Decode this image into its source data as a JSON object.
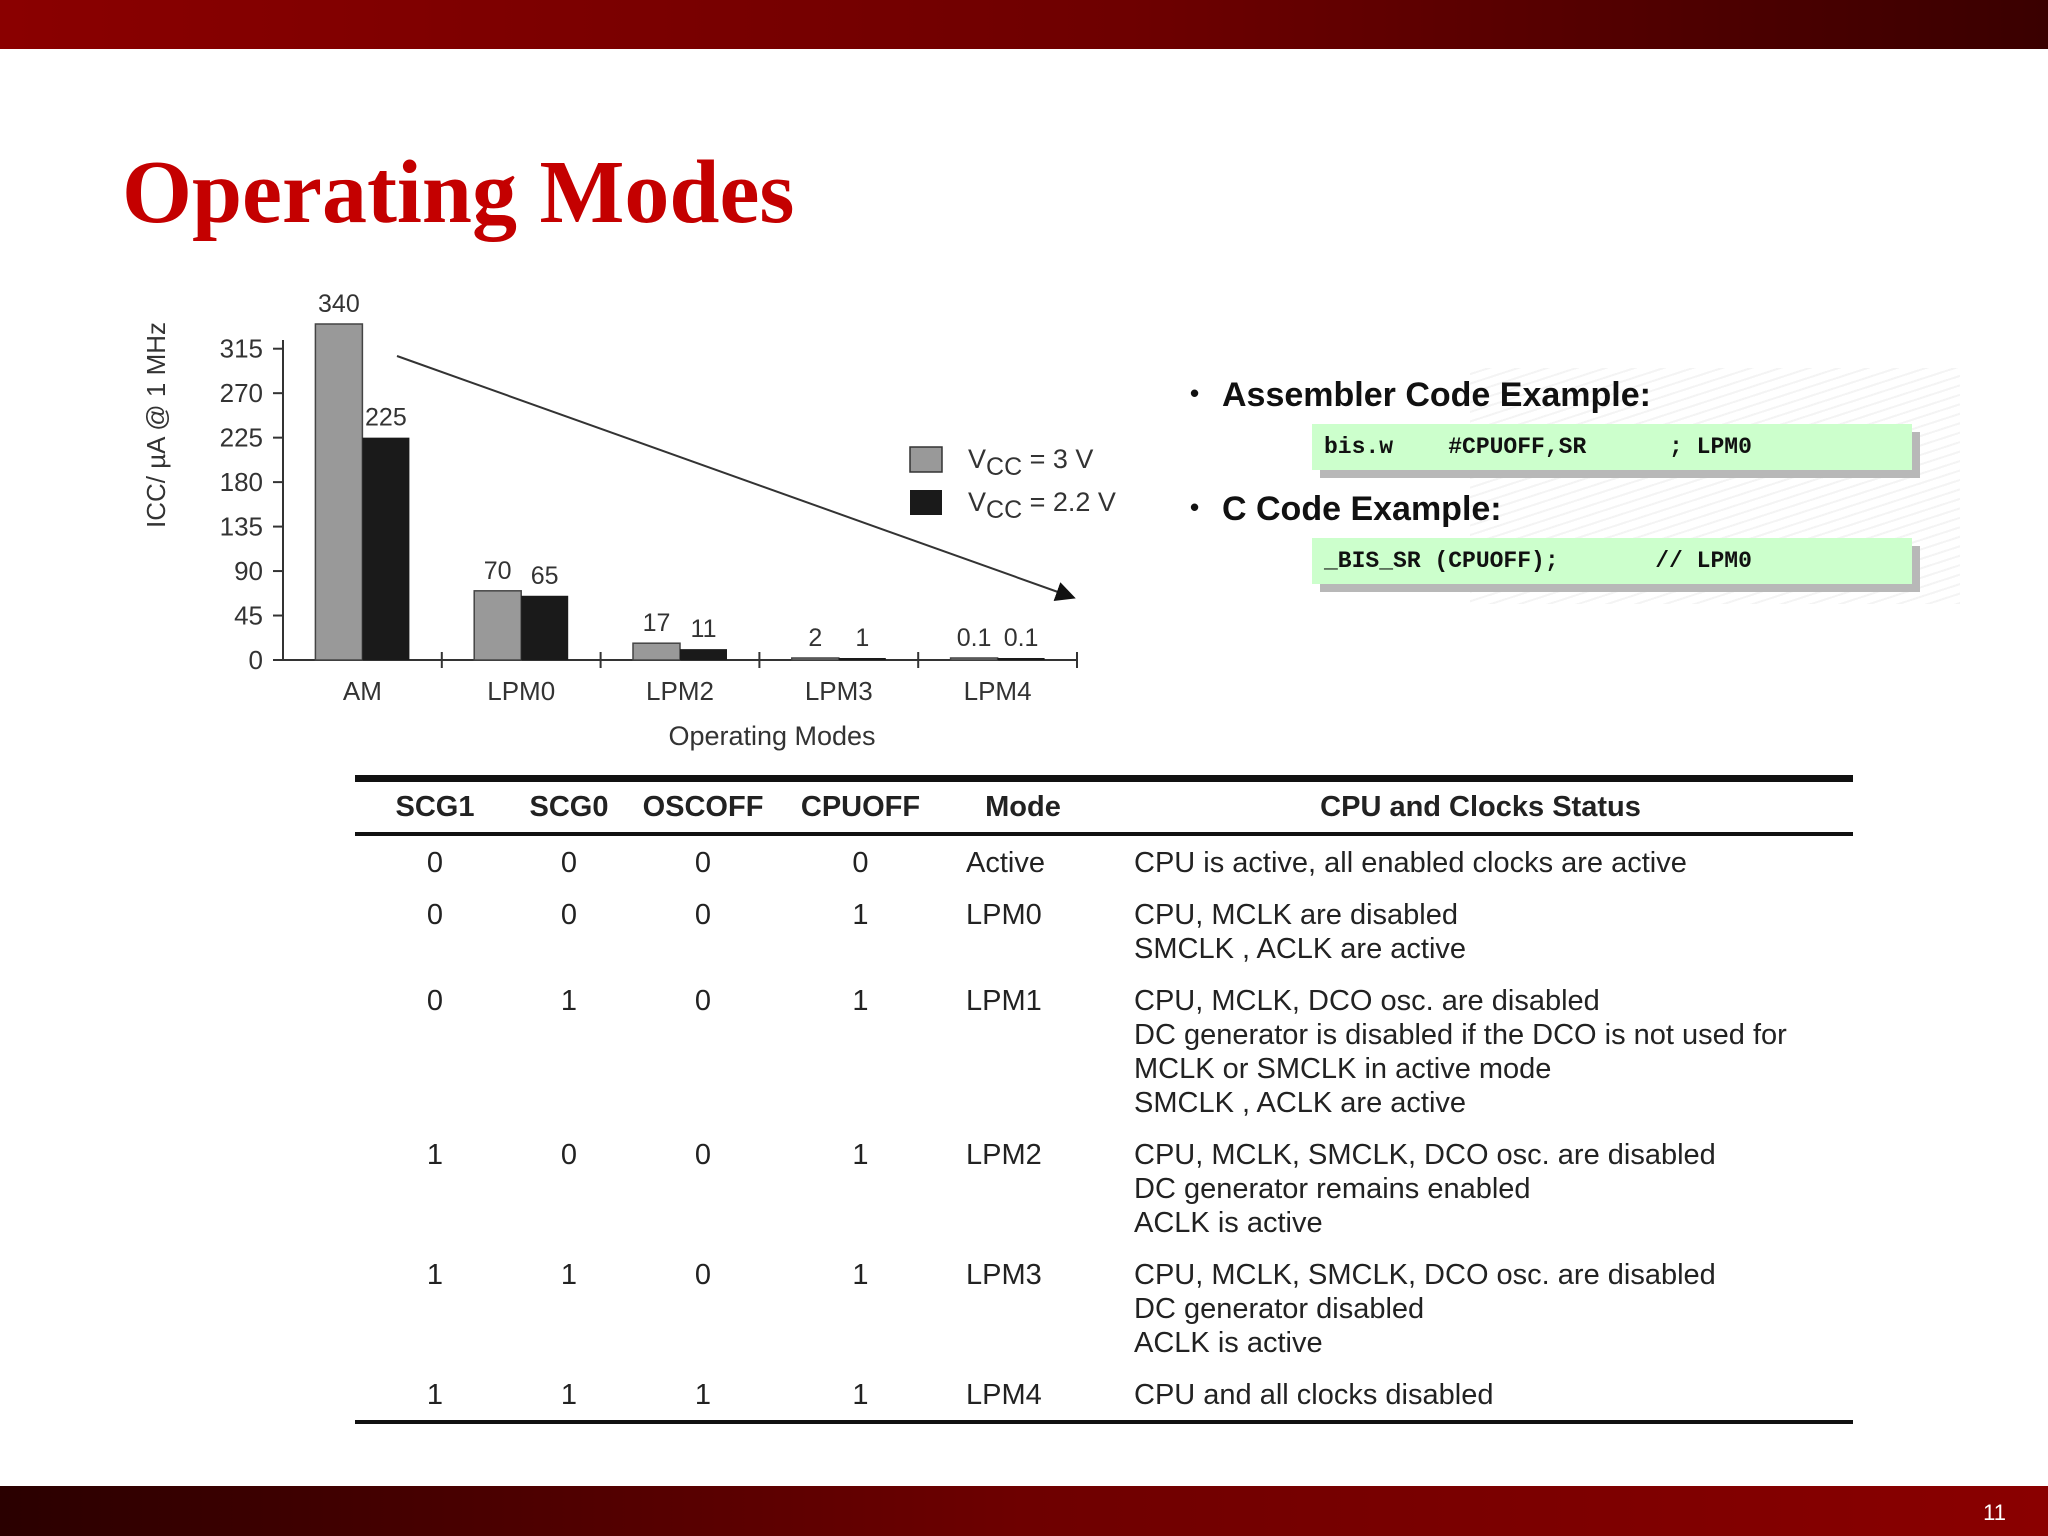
{
  "slide": {
    "title": "Operating Modes",
    "page_number": "11"
  },
  "chart_data": {
    "type": "bar",
    "categories": [
      "AM",
      "LPM0",
      "LPM2",
      "LPM3",
      "LPM4"
    ],
    "series": [
      {
        "name": "VCC = 3 V",
        "values": [
          340,
          70,
          17,
          2,
          0.1
        ],
        "labels": [
          "340",
          "70",
          "17",
          "2",
          "0.1"
        ],
        "color": "#999999"
      },
      {
        "name": "VCC = 2.2 V",
        "values": [
          225,
          65,
          11,
          1,
          0.1
        ],
        "labels": [
          "225",
          "65",
          "11",
          "1",
          "0.1"
        ],
        "color": "#1a1a1a"
      }
    ],
    "yticks": [
      0,
      45,
      90,
      135,
      180,
      225,
      270,
      315
    ],
    "ylim": [
      0,
      340
    ],
    "xlabel": "Operating Modes",
    "ylabel": "ICC/ µA @ 1 MHz",
    "legend": [
      {
        "main": "V",
        "sub": "CC",
        "rest": " = 3 V"
      },
      {
        "main": "V",
        "sub": "CC",
        "rest": " = 2.2 V"
      }
    ],
    "legend_position": "right",
    "trend_arrow": true,
    "grid": false
  },
  "code_examples": [
    {
      "bullet": "Assembler Code Example:",
      "code": "bis.w    #CPUOFF,SR      ; LPM0"
    },
    {
      "bullet": "C Code Example:",
      "code": "_BIS_SR (CPUOFF);       // LPM0"
    }
  ],
  "table": {
    "headers": [
      "SCG1",
      "SCG0",
      "OSCOFF",
      "CPUOFF",
      "Mode",
      "CPU and Clocks Status"
    ],
    "rows": [
      {
        "scg1": "0",
        "scg0": "0",
        "oscoff": "0",
        "cpuoff": "0",
        "mode": "Active",
        "status": "CPU is active, all enabled clocks are active"
      },
      {
        "scg1": "0",
        "scg0": "0",
        "oscoff": "0",
        "cpuoff": "1",
        "mode": "LPM0",
        "status": "CPU, MCLK are disabled\nSMCLK , ACLK are active"
      },
      {
        "scg1": "0",
        "scg0": "1",
        "oscoff": "0",
        "cpuoff": "1",
        "mode": "LPM1",
        "status": "CPU, MCLK, DCO osc. are disabled\nDC generator is disabled if the DCO is not used for\nMCLK or SMCLK in active mode\nSMCLK , ACLK are active"
      },
      {
        "scg1": "1",
        "scg0": "0",
        "oscoff": "0",
        "cpuoff": "1",
        "mode": "LPM2",
        "status": "CPU, MCLK, SMCLK, DCO osc. are disabled\nDC generator remains enabled\nACLK is active"
      },
      {
        "scg1": "1",
        "scg0": "1",
        "oscoff": "0",
        "cpuoff": "1",
        "mode": "LPM3",
        "status": "CPU, MCLK, SMCLK, DCO osc. are disabled\nDC generator disabled\nACLK is active"
      },
      {
        "scg1": "1",
        "scg0": "1",
        "oscoff": "1",
        "cpuoff": "1",
        "mode": "LPM4",
        "status": "CPU and all clocks disabled"
      }
    ]
  }
}
